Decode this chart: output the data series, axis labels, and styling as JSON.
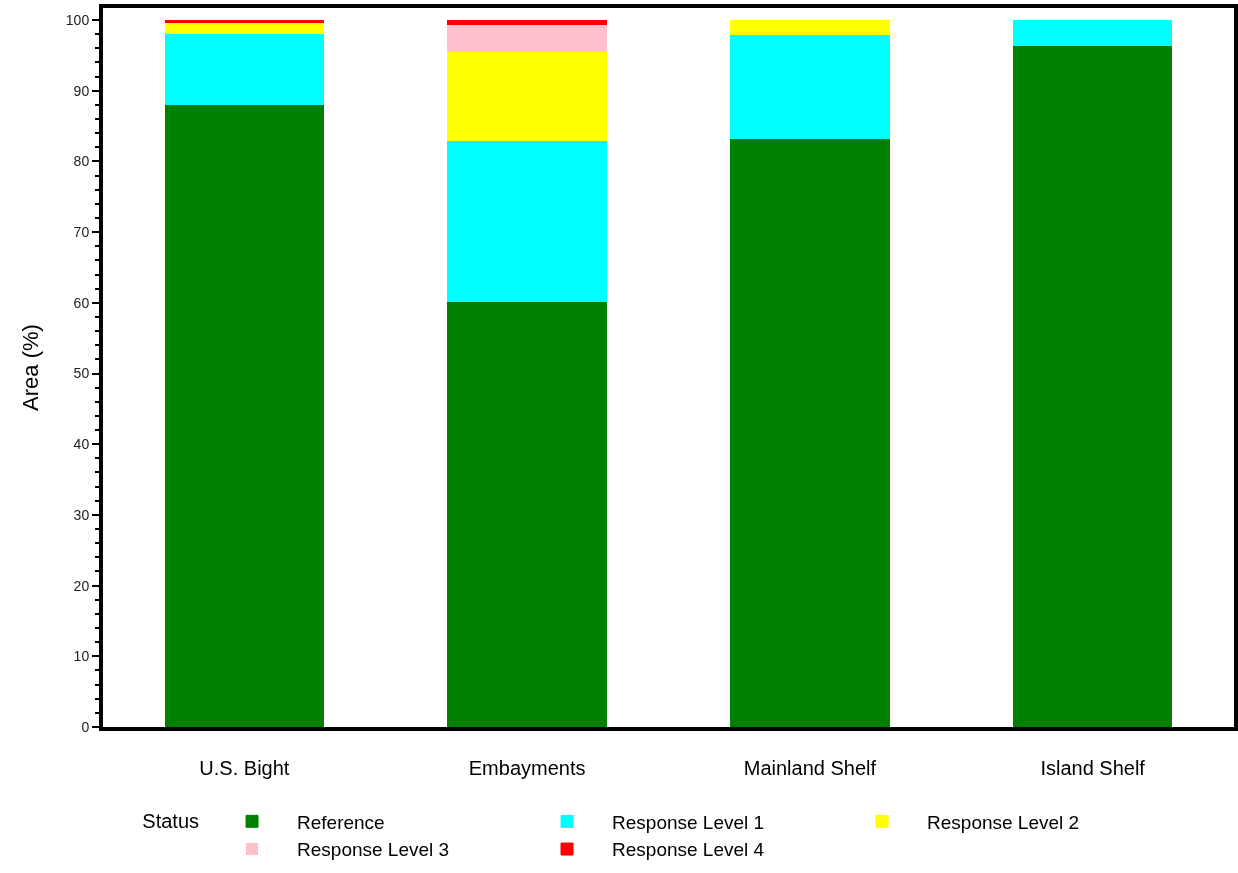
{
  "chart_data": {
    "type": "bar",
    "stacked": true,
    "ylabel": "Area (%)",
    "legend_title": "Status",
    "categories": [
      "U.S. Bight",
      "Embayments",
      "Mainland Shelf",
      "Island Shelf"
    ],
    "series": [
      {
        "name": "Reference",
        "color": "#008000",
        "values": [
          88.0,
          60.2,
          83.2,
          96.4
        ]
      },
      {
        "name": "Response Level 1",
        "color": "#00ffff",
        "values": [
          10.1,
          22.8,
          14.7,
          3.6
        ]
      },
      {
        "name": "Response Level 2",
        "color": "#ffff00",
        "values": [
          1.6,
          12.6,
          2.1,
          0
        ]
      },
      {
        "name": "Response Level 3",
        "color": "#ffc0cb",
        "values": [
          0,
          3.7,
          0,
          0
        ]
      },
      {
        "name": "Response Level 4",
        "color": "#ff0000",
        "values": [
          0.3,
          0.7,
          0,
          0
        ]
      }
    ],
    "ylim": [
      0,
      101.7
    ],
    "yticks": [
      0,
      {
        "value": 2,
        "label": null
      },
      {
        "value": 4,
        "label": null
      },
      {
        "value": 6,
        "label": null
      },
      {
        "value": 8,
        "label": null
      },
      10,
      {
        "value": 12,
        "label": null
      },
      {
        "value": 14,
        "label": null
      },
      {
        "value": 16,
        "label": null
      },
      {
        "value": 18,
        "label": null
      },
      20,
      {
        "value": 22,
        "label": null
      },
      {
        "value": 24,
        "label": null
      },
      {
        "value": 26,
        "label": null
      },
      {
        "value": 28,
        "label": null
      },
      30,
      {
        "value": 32,
        "label": null
      },
      {
        "value": 34,
        "label": null
      },
      {
        "value": 36,
        "label": null
      },
      {
        "value": 38,
        "label": null
      },
      40,
      {
        "value": 42,
        "label": null
      },
      {
        "value": 44,
        "label": null
      },
      {
        "value": 46,
        "label": null
      },
      {
        "value": 48,
        "label": null
      },
      50,
      {
        "value": 52,
        "label": null
      },
      {
        "value": 54,
        "label": null
      },
      {
        "value": 56,
        "label": null
      },
      {
        "value": 58,
        "label": null
      },
      60,
      {
        "value": 62,
        "label": null
      },
      {
        "value": 64,
        "label": null
      },
      {
        "value": 66,
        "label": null
      },
      {
        "value": 68,
        "label": null
      },
      70,
      {
        "value": 72,
        "label": null
      },
      {
        "value": 74,
        "label": null
      },
      {
        "value": 76,
        "label": null
      },
      {
        "value": 78,
        "label": null
      },
      80,
      {
        "value": 82,
        "label": null
      },
      {
        "value": 84,
        "label": null
      },
      {
        "value": 86,
        "label": null
      },
      {
        "value": 88,
        "label": null
      },
      90,
      {
        "value": 92,
        "label": null
      },
      {
        "value": 94,
        "label": null
      },
      {
        "value": 96,
        "label": null
      },
      {
        "value": 98,
        "label": null
      },
      100
    ],
    "grid": false,
    "legend": "bottom"
  }
}
